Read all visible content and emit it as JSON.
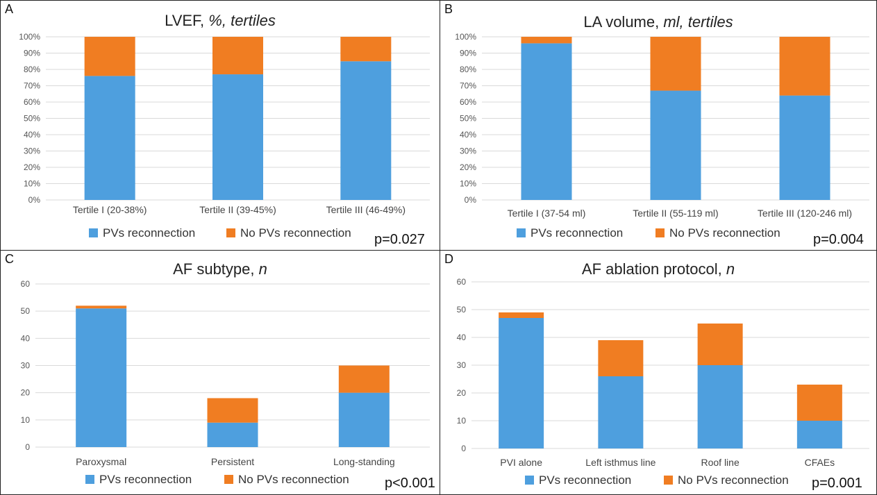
{
  "colors": {
    "reconnection": "#4E9FDE",
    "no_reconnection": "#F07D22",
    "grid": "#D9D9D9"
  },
  "chart_data": [
    {
      "type": "bar",
      "stacked": true,
      "percent": true,
      "letter": "A",
      "title_main": "LVEF, ",
      "title_ital": "%, tertiles",
      "categories": [
        "Tertile I (20-38%)",
        "Tertile II (39-45%)",
        "Tertile III (46-49%)"
      ],
      "series": [
        {
          "name": "PVs reconnection",
          "values": [
            76,
            77,
            85
          ]
        },
        {
          "name": "No PVs reconnection",
          "values": [
            24,
            23,
            15
          ]
        }
      ],
      "ylim": [
        0,
        100
      ],
      "yticks": [
        0,
        10,
        20,
        30,
        40,
        50,
        60,
        70,
        80,
        90,
        100
      ],
      "ytick_labels": [
        "0%",
        "10%",
        "20%",
        "30%",
        "40%",
        "50%",
        "60%",
        "70%",
        "80%",
        "90%",
        "100%"
      ],
      "legend": "bottom",
      "pvalue": "p=0.027"
    },
    {
      "type": "bar",
      "stacked": true,
      "percent": true,
      "letter": "B",
      "title_main": "LA volume, ",
      "title_ital": "ml, tertiles",
      "categories": [
        "Tertile I (37-54 ml)",
        "Tertile II (55-119 ml)",
        "Tertile III (120-246 ml)"
      ],
      "series": [
        {
          "name": "PVs reconnection",
          "values": [
            96,
            67,
            64
          ]
        },
        {
          "name": "No PVs reconnection",
          "values": [
            4,
            33,
            36
          ]
        }
      ],
      "ylim": [
        0,
        100
      ],
      "yticks": [
        0,
        10,
        20,
        30,
        40,
        50,
        60,
        70,
        80,
        90,
        100
      ],
      "ytick_labels": [
        "0%",
        "10%",
        "20%",
        "30%",
        "40%",
        "50%",
        "60%",
        "70%",
        "80%",
        "90%",
        "100%"
      ],
      "legend": "bottom",
      "pvalue": "p=0.004"
    },
    {
      "type": "bar",
      "stacked": true,
      "letter": "C",
      "title_main": "AF subtype, ",
      "title_ital": "n",
      "categories": [
        "Paroxysmal",
        "Persistent",
        "Long-standing"
      ],
      "series": [
        {
          "name": "PVs reconnection",
          "values": [
            51,
            9,
            20
          ]
        },
        {
          "name": "No PVs reconnection",
          "values": [
            1,
            9,
            10
          ]
        }
      ],
      "ylim": [
        0,
        60
      ],
      "yticks": [
        0,
        10,
        20,
        30,
        40,
        50,
        60
      ],
      "ytick_labels": [
        "0",
        "10",
        "20",
        "30",
        "40",
        "50",
        "60"
      ],
      "legend": "bottom",
      "pvalue": "p<0.001"
    },
    {
      "type": "bar",
      "stacked": true,
      "letter": "D",
      "title_main": "AF ablation protocol, ",
      "title_ital": "n",
      "categories": [
        "PVI alone",
        "Left isthmus line",
        "Roof line",
        "CFAEs"
      ],
      "series": [
        {
          "name": "PVs reconnection",
          "values": [
            47,
            26,
            30,
            10
          ]
        },
        {
          "name": "No PVs reconnection",
          "values": [
            2,
            13,
            15,
            13
          ]
        }
      ],
      "ylim": [
        0,
        60
      ],
      "yticks": [
        0,
        10,
        20,
        30,
        40,
        50,
        60
      ],
      "ytick_labels": [
        "0",
        "10",
        "20",
        "30",
        "40",
        "50",
        "60"
      ],
      "legend": "bottom",
      "pvalue": "p=0.001"
    }
  ]
}
